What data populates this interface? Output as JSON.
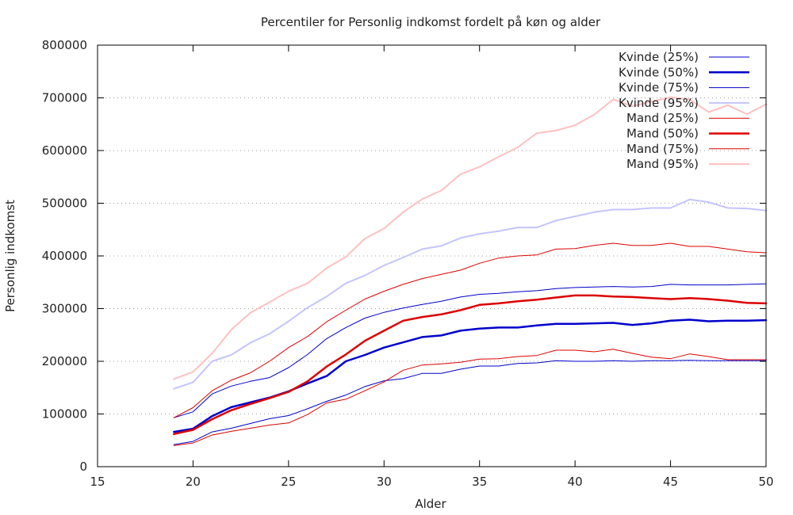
{
  "chart_data": {
    "type": "line",
    "title": "Percentiler for Personlig indkomst fordelt på køn og alder",
    "xlabel": "Alder",
    "ylabel": "Personlig indkomst",
    "xlim": [
      15,
      50
    ],
    "ylim": [
      0,
      800000
    ],
    "xticks": [
      15,
      20,
      25,
      30,
      35,
      40,
      45,
      50
    ],
    "yticks": [
      0,
      100000,
      200000,
      300000,
      400000,
      500000,
      600000,
      700000,
      800000
    ],
    "xtick_labels": [
      "15",
      "20",
      "25",
      "30",
      "35",
      "40",
      "45",
      "50"
    ],
    "ytick_labels": [
      "0",
      "100000",
      "200000",
      "300000",
      "400000",
      "500000",
      "600000",
      "700000",
      "800000"
    ],
    "grid": "y-dotted",
    "legend_position": "top-right",
    "x": [
      19,
      20,
      21,
      22,
      23,
      24,
      25,
      26,
      27,
      28,
      29,
      30,
      31,
      32,
      33,
      34,
      35,
      36,
      37,
      38,
      39,
      40,
      41,
      42,
      43,
      44,
      45,
      46,
      47,
      48,
      49,
      50
    ],
    "series": [
      {
        "name": "Kvinde (25%)",
        "color": "#0000cc",
        "width": 1,
        "values": [
          42000,
          48000,
          66000,
          73000,
          82000,
          91000,
          97000,
          110000,
          124000,
          136000,
          152000,
          163000,
          167000,
          177000,
          177000,
          185000,
          191000,
          191000,
          196000,
          197000,
          201000,
          200000,
          200000,
          201000,
          200000,
          201000,
          201000,
          202000,
          201000,
          201000,
          201000,
          201000
        ]
      },
      {
        "name": "Kvinde (50%)",
        "color": "#0000cc",
        "width": 2.5,
        "values": [
          66000,
          72000,
          96000,
          113000,
          122000,
          131000,
          143000,
          158000,
          172000,
          200000,
          212000,
          226000,
          236000,
          246000,
          249000,
          258000,
          262000,
          264000,
          264000,
          268000,
          271000,
          271000,
          272000,
          273000,
          269000,
          272000,
          277000,
          279000,
          276000,
          277000,
          277000,
          278000
        ]
      },
      {
        "name": "Kvinde (75%)",
        "color": "#0000cc",
        "width": 1,
        "values": [
          93000,
          104000,
          138000,
          153000,
          162000,
          169000,
          188000,
          213000,
          243000,
          264000,
          282000,
          293000,
          301000,
          308000,
          314000,
          322000,
          327000,
          329000,
          332000,
          334000,
          338000,
          340000,
          341000,
          342000,
          341000,
          342000,
          346000,
          345000,
          345000,
          345000,
          346000,
          347000
        ]
      },
      {
        "name": "Kvinde (95%)",
        "color": "#c4c4ff",
        "width": 2,
        "values": [
          148000,
          160000,
          200000,
          212000,
          235000,
          252000,
          276000,
          302000,
          323000,
          348000,
          363000,
          382000,
          397000,
          413000,
          419000,
          434000,
          442000,
          447000,
          454000,
          454000,
          467000,
          475000,
          483000,
          488000,
          488000,
          491000,
          491000,
          507000,
          502000,
          491000,
          490000,
          486000
        ]
      },
      {
        "name": "Mand (25%)",
        "color": "#dd0000",
        "width": 1,
        "values": [
          40000,
          45000,
          60000,
          67000,
          73000,
          79000,
          83000,
          99000,
          121000,
          128000,
          144000,
          161000,
          183000,
          193000,
          195000,
          198000,
          204000,
          205000,
          209000,
          211000,
          221000,
          221000,
          218000,
          223000,
          215000,
          208000,
          205000,
          214000,
          209000,
          203000,
          203000,
          203000
        ]
      },
      {
        "name": "Mand (50%)",
        "color": "#dd0000",
        "width": 2.5,
        "values": [
          62000,
          70000,
          90000,
          107000,
          119000,
          130000,
          142000,
          162000,
          190000,
          213000,
          239000,
          258000,
          277000,
          284000,
          289000,
          297000,
          307000,
          310000,
          314000,
          317000,
          321000,
          325000,
          325000,
          323000,
          322000,
          320000,
          318000,
          320000,
          318000,
          315000,
          311000,
          310000
        ]
      },
      {
        "name": "Mand (75%)",
        "color": "#dd0000",
        "width": 1,
        "values": [
          93000,
          112000,
          144000,
          164000,
          178000,
          200000,
          226000,
          247000,
          275000,
          297000,
          318000,
          333000,
          346000,
          357000,
          365000,
          373000,
          386000,
          396000,
          400000,
          402000,
          413000,
          414000,
          420000,
          424000,
          420000,
          420000,
          424000,
          418000,
          418000,
          413000,
          408000,
          406000
        ]
      },
      {
        "name": "Mand (95%)",
        "color": "#ffc0c0",
        "width": 2,
        "values": [
          166000,
          180000,
          215000,
          260000,
          292000,
          312000,
          333000,
          348000,
          377000,
          398000,
          433000,
          452000,
          483000,
          508000,
          524000,
          555000,
          569000,
          588000,
          606000,
          633000,
          638000,
          648000,
          668000,
          697000,
          684000,
          693000,
          701000,
          697000,
          673000,
          686000,
          669000,
          688000
        ]
      }
    ]
  }
}
